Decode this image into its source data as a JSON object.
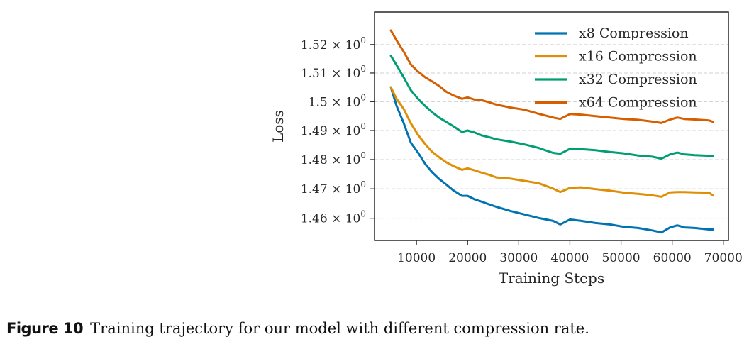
{
  "chart_data": {
    "type": "line",
    "title": "",
    "xlabel": "Training Steps",
    "ylabel": "Loss",
    "yscale": "log",
    "xlim": [
      1800,
      71000
    ],
    "ylim": [
      1.4525,
      1.5315
    ],
    "xticks": [
      10000,
      20000,
      30000,
      40000,
      50000,
      60000,
      70000
    ],
    "xtick_labels": [
      "10000",
      "20000",
      "30000",
      "40000",
      "50000",
      "60000",
      "70000"
    ],
    "yticks": [
      1.46,
      1.47,
      1.48,
      1.49,
      1.5,
      1.51,
      1.52
    ],
    "ytick_labels": [
      {
        "mantissa": "1.46",
        "exp": "0"
      },
      {
        "mantissa": "1.47",
        "exp": "0"
      },
      {
        "mantissa": "1.48",
        "exp": "0"
      },
      {
        "mantissa": "1.49",
        "exp": "0"
      },
      {
        "mantissa": "1.5",
        "exp": "0"
      },
      {
        "mantissa": "1.51",
        "exp": "0"
      },
      {
        "mantissa": "1.52",
        "exp": "0"
      }
    ],
    "grid": "y-dashed",
    "legend_position": "top-right",
    "x": [
      5000,
      6100,
      7500,
      8900,
      10300,
      11700,
      13100,
      14400,
      15800,
      17200,
      18900,
      20000,
      21400,
      22800,
      24200,
      25600,
      28300,
      31100,
      33900,
      36700,
      38100,
      40000,
      42200,
      45000,
      47800,
      50600,
      53300,
      56100,
      57900,
      59600,
      61000,
      62400,
      64400,
      67200,
      68000
    ],
    "series": [
      {
        "name": "x8 Compression",
        "color": "#0173b2",
        "values": [
          1.505,
          1.4986,
          1.4926,
          1.4858,
          1.4824,
          1.4785,
          1.4756,
          1.4734,
          1.4715,
          1.4695,
          1.4676,
          1.4676,
          1.4664,
          1.4656,
          1.4647,
          1.4639,
          1.4625,
          1.4613,
          1.4601,
          1.4591,
          1.4579,
          1.4596,
          1.4591,
          1.4584,
          1.4579,
          1.4571,
          1.4567,
          1.4559,
          1.4552,
          1.4569,
          1.4576,
          1.4569,
          1.4567,
          1.4562,
          1.4562
        ]
      },
      {
        "name": "x16 Compression",
        "color": "#de8f05",
        "values": [
          1.505,
          1.501,
          1.4975,
          1.4925,
          1.4885,
          1.4853,
          1.4826,
          1.4808,
          1.4791,
          1.4778,
          1.4765,
          1.477,
          1.4763,
          1.4755,
          1.4748,
          1.4739,
          1.4735,
          1.4727,
          1.4719,
          1.4701,
          1.4689,
          1.4703,
          1.4705,
          1.4699,
          1.4694,
          1.4687,
          1.4683,
          1.4678,
          1.4673,
          1.4688,
          1.4689,
          1.4689,
          1.4688,
          1.4687,
          1.4677
        ]
      },
      {
        "name": "x32 Compression",
        "color": "#029e73",
        "values": [
          1.516,
          1.5128,
          1.5085,
          1.504,
          1.501,
          1.4985,
          1.4963,
          1.4945,
          1.493,
          1.4915,
          1.4895,
          1.49,
          1.4893,
          1.4883,
          1.4877,
          1.487,
          1.4862,
          1.4852,
          1.484,
          1.4823,
          1.482,
          1.4837,
          1.4836,
          1.4832,
          1.4826,
          1.4821,
          1.4814,
          1.481,
          1.4803,
          1.4818,
          1.4824,
          1.4818,
          1.4815,
          1.4813,
          1.4811
        ]
      },
      {
        "name": "x64 Compression",
        "color": "#d55e00",
        "values": [
          1.525,
          1.5215,
          1.5175,
          1.513,
          1.5105,
          1.5085,
          1.507,
          1.5055,
          1.5035,
          1.5022,
          1.501,
          1.5015,
          1.5007,
          1.5005,
          1.4998,
          1.499,
          1.498,
          1.4972,
          1.4958,
          1.4945,
          1.494,
          1.4957,
          1.4955,
          1.495,
          1.4945,
          1.494,
          1.4937,
          1.4931,
          1.4926,
          1.4938,
          1.4945,
          1.494,
          1.4938,
          1.4935,
          1.493
        ]
      }
    ]
  },
  "caption": {
    "label": "Figure 10",
    "text": "Training trajectory for our model with different compression rate."
  }
}
